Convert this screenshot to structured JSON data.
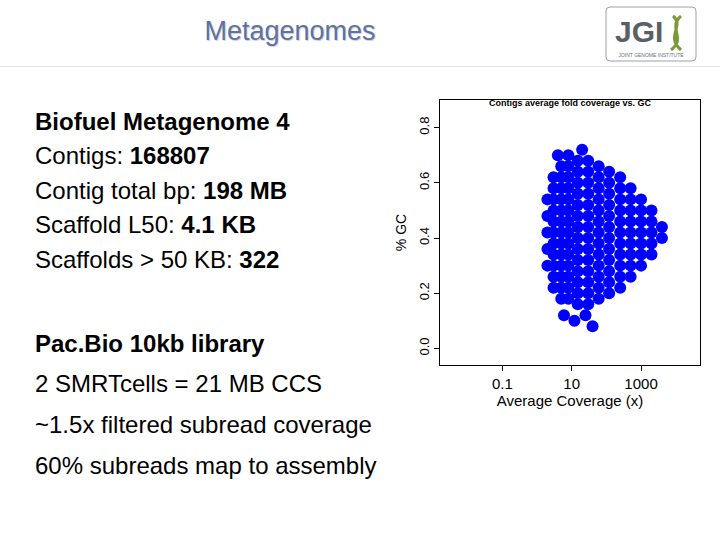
{
  "header": {
    "title": "Metagenomes",
    "logo": "JGI",
    "logo_subtitle": "JOINT GENOME INSTITUTE"
  },
  "stats": {
    "heading": "Biofuel Metagenome 4",
    "rows": [
      {
        "label": "Contigs:",
        "value": "168807"
      },
      {
        "label": "Contig total bp:",
        "value": "198 MB"
      },
      {
        "label": "Scaffold L50:",
        "value": "4.1 KB"
      },
      {
        "label": "Scaffolds > 50 KB:",
        "value": "322"
      }
    ]
  },
  "pacbio": {
    "heading": "Pac.Bio 10kb library",
    "lines": [
      "2 SMRTcells = 21 MB CCS",
      "~1.5x filtered subread coverage",
      "60% subreads map to assembly"
    ]
  },
  "chart_data": {
    "type": "scatter",
    "title": "Contigs average fold coverage vs. GC",
    "x_label": "Average Coverage (x)",
    "y_label": "% GC",
    "x": [
      2,
      2,
      2,
      2,
      2,
      3,
      3,
      3,
      3,
      3,
      3,
      3,
      3,
      3,
      3,
      3,
      5,
      5,
      5,
      5,
      5,
      5,
      5,
      5,
      5,
      5,
      5,
      5,
      5,
      8,
      8,
      8,
      8,
      8,
      8,
      8,
      8,
      8,
      8,
      8,
      8,
      8,
      8,
      15,
      15,
      15,
      15,
      15,
      15,
      15,
      15,
      15,
      15,
      15,
      15,
      15,
      15,
      30,
      30,
      30,
      30,
      30,
      30,
      30,
      30,
      30,
      30,
      30,
      30,
      30,
      30,
      60,
      60,
      60,
      60,
      60,
      60,
      60,
      60,
      60,
      60,
      60,
      60,
      60,
      120,
      120,
      120,
      120,
      120,
      120,
      120,
      120,
      120,
      120,
      120,
      120,
      250,
      250,
      250,
      250,
      250,
      250,
      250,
      250,
      250,
      250,
      250,
      500,
      500,
      500,
      500,
      500,
      500,
      500,
      500,
      500,
      1000,
      1000,
      1000,
      1000,
      1000,
      1000,
      1000,
      2000,
      2000,
      2000,
      2000,
      2000,
      4000,
      4000,
      6,
      12,
      25,
      40,
      4,
      20
    ],
    "values": [
      0.3,
      0.36,
      0.42,
      0.48,
      0.54,
      0.22,
      0.26,
      0.3,
      0.34,
      0.38,
      0.42,
      0.46,
      0.5,
      0.54,
      0.58,
      0.62,
      0.18,
      0.22,
      0.26,
      0.3,
      0.34,
      0.38,
      0.42,
      0.46,
      0.5,
      0.54,
      0.58,
      0.62,
      0.66,
      0.18,
      0.22,
      0.26,
      0.3,
      0.34,
      0.38,
      0.42,
      0.46,
      0.5,
      0.54,
      0.58,
      0.62,
      0.66,
      0.7,
      0.16,
      0.2,
      0.24,
      0.28,
      0.32,
      0.36,
      0.4,
      0.44,
      0.48,
      0.52,
      0.56,
      0.6,
      0.64,
      0.68,
      0.16,
      0.2,
      0.24,
      0.28,
      0.32,
      0.36,
      0.4,
      0.44,
      0.48,
      0.52,
      0.56,
      0.6,
      0.64,
      0.68,
      0.18,
      0.22,
      0.26,
      0.3,
      0.34,
      0.38,
      0.42,
      0.46,
      0.5,
      0.54,
      0.58,
      0.62,
      0.66,
      0.2,
      0.24,
      0.28,
      0.32,
      0.36,
      0.4,
      0.44,
      0.48,
      0.52,
      0.56,
      0.6,
      0.64,
      0.22,
      0.26,
      0.3,
      0.34,
      0.38,
      0.42,
      0.46,
      0.5,
      0.54,
      0.58,
      0.62,
      0.26,
      0.3,
      0.34,
      0.38,
      0.42,
      0.46,
      0.5,
      0.54,
      0.58,
      0.3,
      0.34,
      0.38,
      0.42,
      0.46,
      0.5,
      0.54,
      0.34,
      0.38,
      0.42,
      0.46,
      0.5,
      0.4,
      0.44,
      0.12,
      0.1,
      0.12,
      0.08,
      0.7,
      0.72
    ],
    "color": "#0000ff",
    "marker": "circle",
    "log": "x",
    "xlim": [
      0.0016,
      50000
    ],
    "ylim": [
      -0.06,
      0.9
    ],
    "xticks": [
      0.1,
      10,
      1000
    ],
    "yticks": [
      {
        "value": 0,
        "label": "0.0"
      },
      0.2,
      0.4,
      0.6,
      0.8
    ],
    "grid": false
  }
}
